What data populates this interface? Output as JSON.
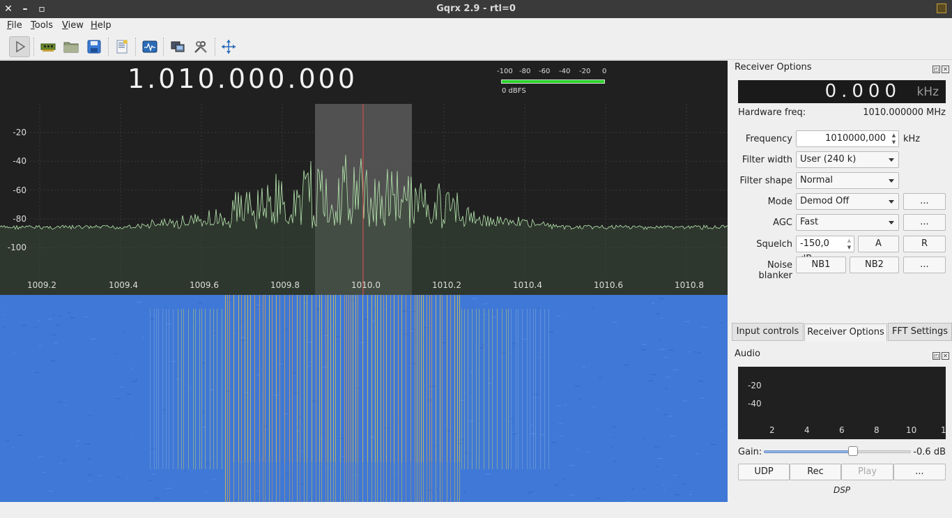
{
  "window": {
    "title": "Gqrx 2.9 - rtl=0",
    "close_glyph": "✕",
    "min_glyph": "–",
    "max_glyph": "▫"
  },
  "menu": {
    "file": "File",
    "tools": "Tools",
    "view": "View",
    "help": "Help"
  },
  "toolbar": {
    "icons": [
      "play-icon",
      "hardware-icon",
      "open-icon",
      "save-icon",
      "bookmark-icon",
      "signal-icon",
      "remote-icon",
      "tools-icon",
      "fullscreen-icon"
    ]
  },
  "plotter": {
    "frequency": "1.010.000.000",
    "smeter": {
      "scale": [
        "-100",
        "-80",
        "-60",
        "-40",
        "-20",
        "0"
      ],
      "label": "0 dBFS",
      "level_fraction": 1.0
    },
    "y_ticks": [
      "-20",
      "-40",
      "-60",
      "-80",
      "-100"
    ],
    "x_ticks": [
      "1009.2",
      "1009.4",
      "1009.6",
      "1009.8",
      "1010.0",
      "1010.2",
      "1010.4",
      "1010.6",
      "1010.8"
    ],
    "colors": {
      "background": "#202020",
      "trace": "#b8e8b0",
      "filter": "#5a5a5a",
      "center": "#e85050"
    }
  },
  "receiver": {
    "title": "Receiver Options",
    "offset_value": "0.000",
    "offset_unit": "kHz",
    "hw_freq_label": "Hardware freq:",
    "hw_freq_value": "1010.000000 MHz",
    "frequency_label": "Frequency",
    "frequency_value": "1010000,000",
    "frequency_unit": "kHz",
    "filter_width_label": "Filter width",
    "filter_width_value": "User (240 k)",
    "filter_shape_label": "Filter shape",
    "filter_shape_value": "Normal",
    "mode_label": "Mode",
    "mode_value": "Demod Off",
    "agc_label": "AGC",
    "agc_value": "Fast",
    "squelch_label": "Squelch",
    "squelch_value": "-150,0 dB",
    "squelch_a": "A",
    "squelch_r": "R",
    "nb_label": "Noise blanker",
    "nb1": "NB1",
    "nb2": "NB2",
    "more": "..."
  },
  "tabs": [
    "Input controls",
    "Receiver Options",
    "FFT Settings"
  ],
  "audio": {
    "title": "Audio",
    "y_ticks": [
      "-20",
      "-40"
    ],
    "x_ticks": [
      "2",
      "4",
      "6",
      "8",
      "10",
      "1"
    ],
    "gain_label": "Gain:",
    "gain_value": "-0.6 dB",
    "gain_fraction": 0.61,
    "udp": "UDP",
    "rec": "Rec",
    "play": "Play",
    "more": "...",
    "dsp": "DSP"
  }
}
